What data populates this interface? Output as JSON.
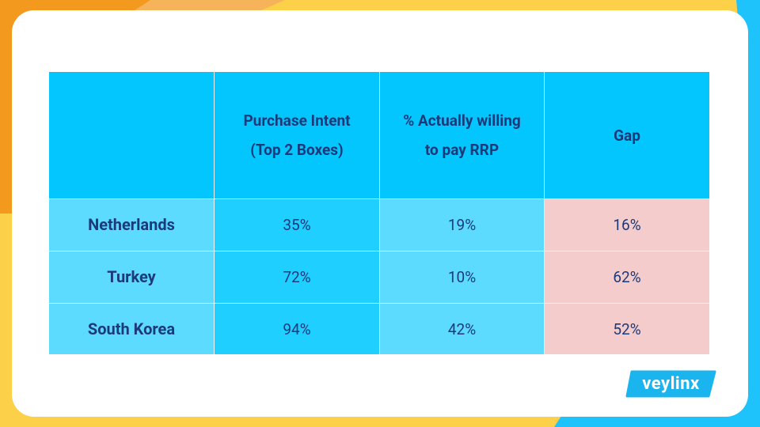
{
  "table": {
    "columns": [
      "Purchase Intent (Top 2 Boxes)",
      "% Actually willing to pay RRP",
      "Gap"
    ],
    "rows": [
      [
        "Netherlands",
        "35%",
        "19%",
        "16%"
      ],
      [
        "Turkey",
        "72%",
        "10%",
        "62%"
      ],
      [
        "South Korea",
        "94%",
        "42%",
        "52%"
      ]
    ]
  },
  "logo": "veylinx"
}
